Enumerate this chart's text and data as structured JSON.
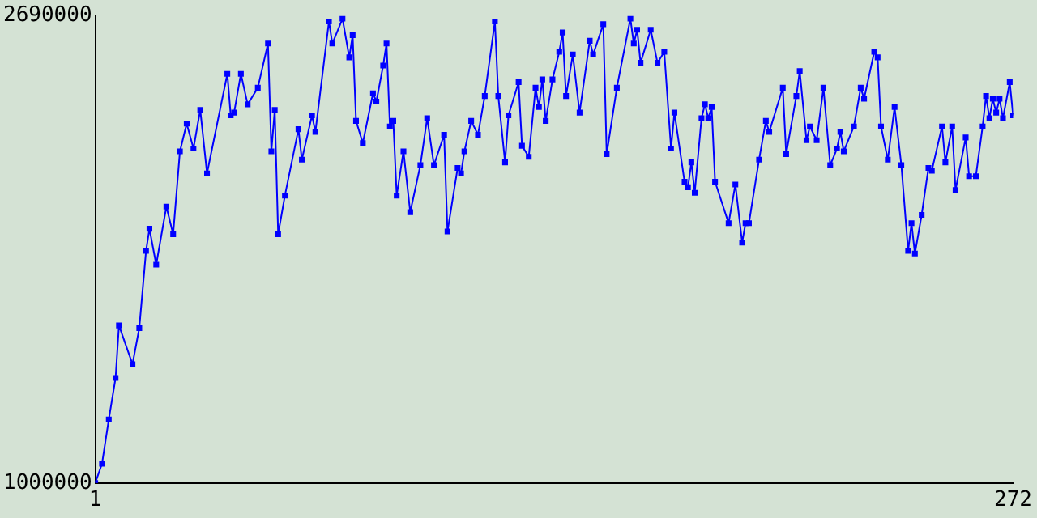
{
  "chart_data": {
    "type": "line",
    "marker": "square",
    "line_style": "solid",
    "grid": false,
    "legend": false,
    "xlim": [
      1,
      272
    ],
    "xticks": [
      1,
      272
    ],
    "ylim": [
      1000000,
      2690000
    ],
    "yticks": [
      1000000,
      2690000
    ],
    "series": [
      {
        "color": "#0000ff",
        "x": [
          1,
          3,
          5,
          7,
          8,
          12,
          14,
          16,
          17,
          19,
          22,
          24,
          26,
          28,
          30,
          32,
          34,
          40,
          41,
          42,
          44,
          46,
          49,
          52,
          53,
          54,
          55,
          57,
          61,
          62,
          65,
          66,
          70,
          71,
          74,
          76,
          77,
          78,
          80,
          83,
          84,
          86,
          87,
          88,
          89,
          90,
          92,
          94,
          97,
          99,
          101,
          104,
          105,
          108,
          109,
          110,
          112,
          114,
          116,
          119,
          120,
          122,
          123,
          126,
          127,
          129,
          131,
          132,
          133,
          134,
          136,
          138,
          139,
          140,
          142,
          144,
          147,
          148,
          151,
          152,
          155,
          159,
          160,
          161,
          162,
          165,
          167,
          169,
          171,
          172,
          175,
          176,
          177,
          178,
          180,
          181,
          182,
          183,
          184,
          188,
          190,
          192,
          193,
          194,
          197,
          199,
          200,
          204,
          205,
          208,
          209,
          211,
          212,
          214,
          216,
          218,
          220,
          221,
          222,
          225,
          227,
          228,
          231,
          232,
          233,
          235,
          237,
          239,
          241,
          242,
          243,
          245,
          247,
          248,
          251,
          252,
          254,
          255,
          258,
          259,
          261,
          263,
          264,
          265,
          266,
          267,
          268,
          269,
          271,
          272
        ],
        "values": [
          1000000,
          1070000,
          1230000,
          1380000,
          1570000,
          1430000,
          1560000,
          1840000,
          1920000,
          1790000,
          2000000,
          1900000,
          2200000,
          2300000,
          2210000,
          2350000,
          2120000,
          2480000,
          2330000,
          2340000,
          2480000,
          2370000,
          2430000,
          2590000,
          2200000,
          2350000,
          1900000,
          2040000,
          2280000,
          2170000,
          2330000,
          2270000,
          2670000,
          2590000,
          2680000,
          2540000,
          2620000,
          2310000,
          2230000,
          2410000,
          2380000,
          2510000,
          2590000,
          2290000,
          2310000,
          2040000,
          2200000,
          1980000,
          2150000,
          2320000,
          2150000,
          2260000,
          1910000,
          2140000,
          2120000,
          2200000,
          2310000,
          2260000,
          2400000,
          2670000,
          2400000,
          2160000,
          2330000,
          2450000,
          2220000,
          2180000,
          2430000,
          2360000,
          2460000,
          2310000,
          2460000,
          2560000,
          2630000,
          2400000,
          2550000,
          2340000,
          2600000,
          2550000,
          2660000,
          2190000,
          2430000,
          2680000,
          2590000,
          2640000,
          2520000,
          2640000,
          2520000,
          2560000,
          2210000,
          2340000,
          2090000,
          2070000,
          2160000,
          2050000,
          2320000,
          2370000,
          2320000,
          2360000,
          2090000,
          1940000,
          2080000,
          1870000,
          1940000,
          1940000,
          2170000,
          2310000,
          2270000,
          2430000,
          2190000,
          2400000,
          2490000,
          2240000,
          2290000,
          2240000,
          2430000,
          2150000,
          2210000,
          2270000,
          2200000,
          2290000,
          2430000,
          2390000,
          2560000,
          2540000,
          2290000,
          2170000,
          2360000,
          2150000,
          1840000,
          1940000,
          1830000,
          1970000,
          2140000,
          2130000,
          2290000,
          2160000,
          2290000,
          2060000,
          2250000,
          2110000,
          2110000,
          2290000,
          2400000,
          2320000,
          2390000,
          2340000,
          2390000,
          2320000,
          2450000,
          2330000
        ]
      }
    ]
  }
}
